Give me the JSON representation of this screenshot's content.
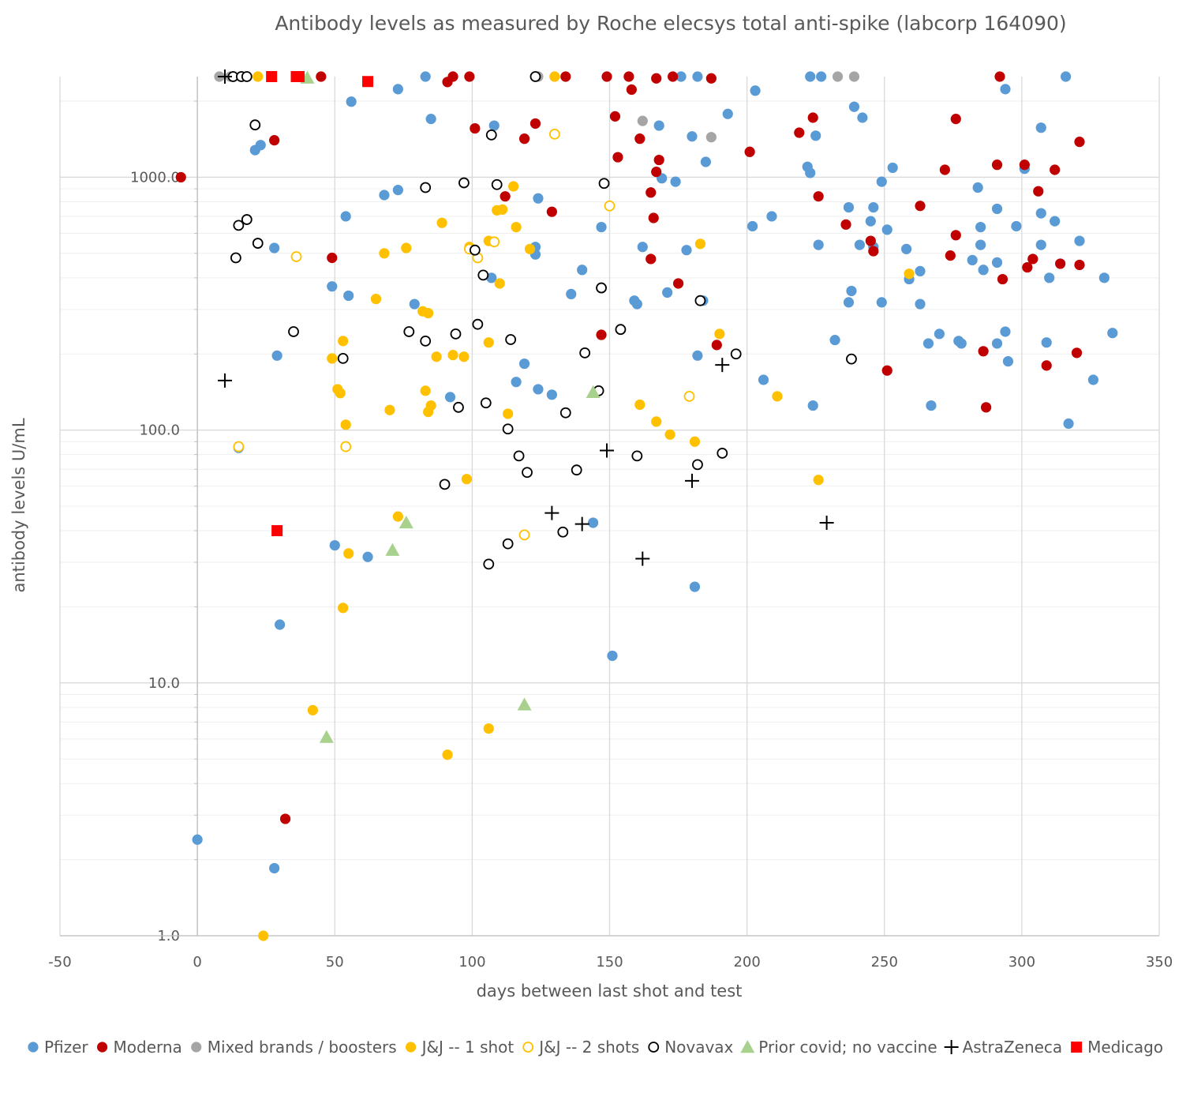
{
  "chart_data": {
    "type": "scatter",
    "title": "Antibody levels as measured by Roche elecsys total anti-spike (labcorp 164090)",
    "xlabel": "days between last shot and test",
    "ylabel": "antibody levels U/mL",
    "xlim": [
      -50,
      350
    ],
    "x_ticks": [
      -50,
      0,
      50,
      100,
      150,
      200,
      250,
      300,
      350
    ],
    "x_tick_labels": [
      "-50",
      "0",
      "50",
      "100",
      "150",
      "200",
      "250",
      "300",
      "350"
    ],
    "ylim": [
      1,
      2500
    ],
    "y_scale": "log",
    "y_ticks": [
      1,
      10,
      100,
      1000
    ],
    "y_tick_labels": [
      "1.0",
      "10.0",
      "100.0",
      "1000.0"
    ],
    "grid": true,
    "legend_position": "bottom",
    "series": [
      {
        "name": "Pfizer",
        "marker": "circle-filled",
        "color": "#5B9BD5",
        "points": [
          [
            0,
            2.4
          ],
          [
            28,
            1.85
          ],
          [
            30,
            17
          ],
          [
            15,
            85
          ],
          [
            29,
            197
          ],
          [
            28,
            525
          ],
          [
            21,
            1280
          ],
          [
            23,
            1340
          ],
          [
            49,
            370
          ],
          [
            50,
            35
          ],
          [
            55,
            340
          ],
          [
            54,
            700
          ],
          [
            56,
            1990
          ],
          [
            62,
            31.5
          ],
          [
            68,
            850
          ],
          [
            73,
            890
          ],
          [
            73,
            2230
          ],
          [
            79,
            315
          ],
          [
            83,
            2500
          ],
          [
            85,
            1700
          ],
          [
            92,
            135
          ],
          [
            107,
            400
          ],
          [
            108,
            1600
          ],
          [
            116,
            155
          ],
          [
            119,
            183
          ],
          [
            123,
            530
          ],
          [
            123,
            495
          ],
          [
            124,
            145
          ],
          [
            124,
            825
          ],
          [
            129,
            138
          ],
          [
            136,
            345
          ],
          [
            140,
            430
          ],
          [
            144,
            43
          ],
          [
            147,
            635
          ],
          [
            151,
            12.8
          ],
          [
            159,
            325
          ],
          [
            160,
            315
          ],
          [
            162,
            530
          ],
          [
            168,
            1600
          ],
          [
            169,
            990
          ],
          [
            171,
            350
          ],
          [
            174,
            960
          ],
          [
            176,
            2500
          ],
          [
            178,
            515
          ],
          [
            180,
            1450
          ],
          [
            181,
            24
          ],
          [
            182,
            197
          ],
          [
            182,
            2500
          ],
          [
            184,
            325
          ],
          [
            185,
            1150
          ],
          [
            193,
            1780
          ],
          [
            203,
            2200
          ],
          [
            206,
            158
          ],
          [
            209,
            700
          ],
          [
            202,
            640
          ],
          [
            222,
            1100
          ],
          [
            223,
            1040
          ],
          [
            223,
            2500
          ],
          [
            224,
            125
          ],
          [
            225,
            1460
          ],
          [
            226,
            540
          ],
          [
            227,
            2500
          ],
          [
            232,
            227
          ],
          [
            237,
            760
          ],
          [
            237,
            320
          ],
          [
            238,
            355
          ],
          [
            239,
            1900
          ],
          [
            241,
            540
          ],
          [
            242,
            1720
          ],
          [
            245,
            670
          ],
          [
            246,
            760
          ],
          [
            246,
            530
          ],
          [
            249,
            320
          ],
          [
            249,
            960
          ],
          [
            251,
            620
          ],
          [
            253,
            1090
          ],
          [
            259,
            395
          ],
          [
            258,
            520
          ],
          [
            263,
            425
          ],
          [
            263,
            315
          ],
          [
            266,
            220
          ],
          [
            267,
            125
          ],
          [
            270,
            240
          ],
          [
            277,
            225
          ],
          [
            278,
            220
          ],
          [
            282,
            470
          ],
          [
            284,
            910
          ],
          [
            285,
            540
          ],
          [
            285,
            635
          ],
          [
            286,
            430
          ],
          [
            291,
            750
          ],
          [
            291,
            460
          ],
          [
            291,
            220
          ],
          [
            294,
            245
          ],
          [
            294,
            2230
          ],
          [
            295,
            187
          ],
          [
            298,
            640
          ],
          [
            301,
            1080
          ],
          [
            307,
            720
          ],
          [
            307,
            540
          ],
          [
            307,
            1570
          ],
          [
            309,
            222
          ],
          [
            310,
            400
          ],
          [
            312,
            670
          ],
          [
            316,
            2500
          ],
          [
            317,
            106
          ],
          [
            321,
            560
          ],
          [
            326,
            158
          ],
          [
            330,
            400
          ],
          [
            333,
            242
          ]
        ]
      },
      {
        "name": "Moderna",
        "marker": "circle-filled",
        "color": "#C00000",
        "points": [
          [
            -6,
            1000
          ],
          [
            28,
            1400
          ],
          [
            32,
            2.9
          ],
          [
            36,
            2500
          ],
          [
            45,
            2500
          ],
          [
            49,
            480
          ],
          [
            91,
            2380
          ],
          [
            93,
            2500
          ],
          [
            99,
            2500
          ],
          [
            101,
            1560
          ],
          [
            112,
            840
          ],
          [
            119,
            1420
          ],
          [
            123,
            1630
          ],
          [
            129,
            730
          ],
          [
            134,
            2500
          ],
          [
            147,
            238
          ],
          [
            149,
            2500
          ],
          [
            152,
            1740
          ],
          [
            153,
            1200
          ],
          [
            157,
            2500
          ],
          [
            158,
            2220
          ],
          [
            161,
            1420
          ],
          [
            165,
            870
          ],
          [
            165,
            475
          ],
          [
            166,
            690
          ],
          [
            167,
            1050
          ],
          [
            167,
            2460
          ],
          [
            168,
            1170
          ],
          [
            173,
            2500
          ],
          [
            175,
            380
          ],
          [
            187,
            2460
          ],
          [
            189,
            217
          ],
          [
            201,
            1260
          ],
          [
            219,
            1500
          ],
          [
            224,
            1720
          ],
          [
            226,
            840
          ],
          [
            236,
            650
          ],
          [
            245,
            560
          ],
          [
            246,
            510
          ],
          [
            251,
            172
          ],
          [
            263,
            770
          ],
          [
            272,
            1070
          ],
          [
            274,
            490
          ],
          [
            276,
            590
          ],
          [
            276,
            1700
          ],
          [
            286,
            205
          ],
          [
            287,
            123
          ],
          [
            291,
            1120
          ],
          [
            292,
            2500
          ],
          [
            293,
            395
          ],
          [
            301,
            1120
          ],
          [
            302,
            440
          ],
          [
            304,
            475
          ],
          [
            306,
            880
          ],
          [
            309,
            180
          ],
          [
            312,
            1070
          ],
          [
            314,
            455
          ],
          [
            320,
            202
          ],
          [
            321,
            450
          ],
          [
            321,
            1380
          ]
        ]
      },
      {
        "name": "Mixed brands / boosters",
        "marker": "circle-filled",
        "color": "#A5A5A5",
        "points": [
          [
            8,
            2500
          ],
          [
            12,
            2500
          ],
          [
            124,
            2500
          ],
          [
            162,
            1670
          ],
          [
            187,
            1440
          ],
          [
            233,
            2500
          ],
          [
            239,
            2500
          ]
        ]
      },
      {
        "name": "J&J -- 1 shot",
        "marker": "circle-filled",
        "color": "#FFC000",
        "points": [
          [
            22,
            2500
          ],
          [
            24,
            1.0
          ],
          [
            42,
            7.8
          ],
          [
            49,
            192
          ],
          [
            51,
            145
          ],
          [
            52,
            140
          ],
          [
            53,
            225
          ],
          [
            53,
            19.8
          ],
          [
            54,
            105
          ],
          [
            55,
            32.5
          ],
          [
            65,
            330
          ],
          [
            68,
            500
          ],
          [
            70,
            120
          ],
          [
            73,
            45.5
          ],
          [
            76,
            525
          ],
          [
            82,
            295
          ],
          [
            83,
            143
          ],
          [
            84,
            118
          ],
          [
            84,
            290
          ],
          [
            85,
            125
          ],
          [
            87,
            195
          ],
          [
            89,
            660
          ],
          [
            91,
            5.2
          ],
          [
            93,
            198
          ],
          [
            97,
            195
          ],
          [
            98,
            64
          ],
          [
            99,
            530
          ],
          [
            106,
            6.6
          ],
          [
            106,
            560
          ],
          [
            106,
            222
          ],
          [
            109,
            740
          ],
          [
            110,
            380
          ],
          [
            111,
            745
          ],
          [
            113,
            116
          ],
          [
            115,
            920
          ],
          [
            116,
            635
          ],
          [
            121,
            520
          ],
          [
            130,
            2500
          ],
          [
            161,
            126
          ],
          [
            167,
            108
          ],
          [
            172,
            96
          ],
          [
            181,
            90
          ],
          [
            183,
            545
          ],
          [
            190,
            240
          ],
          [
            211,
            136
          ],
          [
            226,
            63.5
          ],
          [
            259,
            415
          ]
        ]
      },
      {
        "name": "J&J -- 2 shots",
        "marker": "circle-open",
        "color": "#FFC000",
        "points": [
          [
            15,
            86
          ],
          [
            36,
            485
          ],
          [
            54,
            86
          ],
          [
            99,
            520
          ],
          [
            102,
            480
          ],
          [
            108,
            555
          ],
          [
            119,
            38.5
          ],
          [
            130,
            1480
          ],
          [
            150,
            770
          ],
          [
            179,
            136
          ]
        ]
      },
      {
        "name": "Novavax",
        "marker": "circle-open",
        "color": "#000000",
        "points": [
          [
            13,
            2500
          ],
          [
            14,
            480
          ],
          [
            15,
            645
          ],
          [
            16,
            2500
          ],
          [
            18,
            2500
          ],
          [
            18,
            680
          ],
          [
            21,
            1610
          ],
          [
            22,
            548
          ],
          [
            35,
            245
          ],
          [
            53,
            192
          ],
          [
            77,
            245
          ],
          [
            83,
            225
          ],
          [
            83,
            910
          ],
          [
            90,
            61
          ],
          [
            94,
            240
          ],
          [
            95,
            123
          ],
          [
            97,
            950
          ],
          [
            101,
            515
          ],
          [
            102,
            262
          ],
          [
            104,
            410
          ],
          [
            105,
            128
          ],
          [
            107,
            1470
          ],
          [
            109,
            935
          ],
          [
            113,
            101
          ],
          [
            113,
            35.5
          ],
          [
            114,
            228
          ],
          [
            106,
            29.5
          ],
          [
            117,
            79
          ],
          [
            120,
            68
          ],
          [
            123,
            2500
          ],
          [
            133,
            39.5
          ],
          [
            134,
            117
          ],
          [
            138,
            69.5
          ],
          [
            141,
            202
          ],
          [
            146,
            143
          ],
          [
            147,
            365
          ],
          [
            148,
            945
          ],
          [
            154,
            250
          ],
          [
            160,
            79
          ],
          [
            182,
            73
          ],
          [
            183,
            325
          ],
          [
            191,
            81
          ],
          [
            196,
            200
          ],
          [
            238,
            191
          ]
        ]
      },
      {
        "name": "Prior covid; no vaccine",
        "marker": "triangle-filled",
        "color": "#A9D18E",
        "points": [
          [
            40,
            2470
          ],
          [
            47,
            6.1
          ],
          [
            71,
            33.5
          ],
          [
            76,
            43
          ],
          [
            119,
            8.2
          ],
          [
            144,
            141
          ]
        ]
      },
      {
        "name": "AstraZeneca",
        "marker": "plus",
        "color": "#000000",
        "points": [
          [
            10,
            2500
          ],
          [
            10,
            157
          ],
          [
            129,
            47
          ],
          [
            140,
            42.5
          ],
          [
            149,
            83
          ],
          [
            162,
            31
          ],
          [
            180,
            63
          ],
          [
            191,
            181
          ],
          [
            229,
            43
          ]
        ]
      },
      {
        "name": "Medicago",
        "marker": "square-filled",
        "color": "#FF0000",
        "points": [
          [
            27,
            2500
          ],
          [
            29,
            40
          ],
          [
            36,
            2500
          ],
          [
            37,
            2500
          ],
          [
            62,
            2390
          ]
        ]
      }
    ]
  }
}
